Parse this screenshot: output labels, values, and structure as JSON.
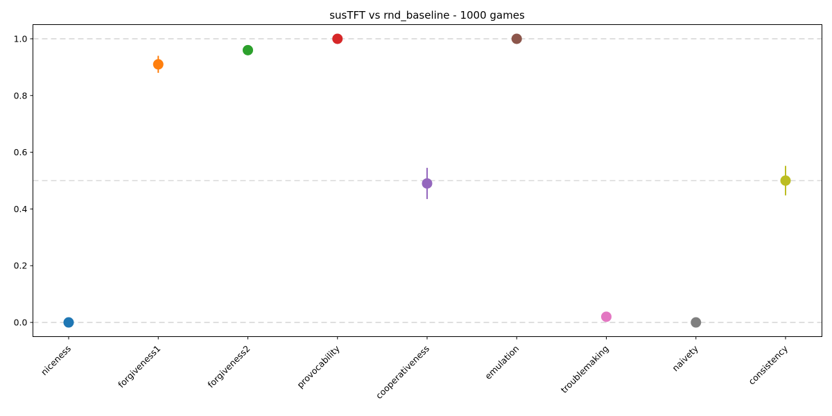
{
  "chart_data": {
    "type": "scatter",
    "title": "susTFT vs rnd_baseline - 1000 games",
    "xlabel": "",
    "ylabel": "",
    "categories": [
      "niceness",
      "forgiveness1",
      "forgiveness2",
      "provocability",
      "cooperativeness",
      "emulation",
      "troublemaking",
      "naivety",
      "consistency"
    ],
    "values": [
      0.0,
      0.91,
      0.96,
      1.0,
      0.49,
      1.0,
      0.02,
      0.0,
      0.5
    ],
    "error": [
      0.0,
      0.03,
      0.0,
      0.0,
      0.055,
      0.0,
      0.0,
      0.0,
      0.052
    ],
    "colors": [
      "#1f77b4",
      "#ff7f0e",
      "#2ca02c",
      "#d62728",
      "#9467bd",
      "#8c564b",
      "#e377c2",
      "#7f7f7f",
      "#bcbd22"
    ],
    "ylim": [
      -0.05,
      1.05
    ],
    "yticks": [
      "0.0",
      "0.2",
      "0.4",
      "0.6",
      "0.8",
      "1.0"
    ],
    "reference_lines": [
      0.0,
      0.5,
      1.0
    ],
    "grid": false,
    "legend": "none"
  }
}
